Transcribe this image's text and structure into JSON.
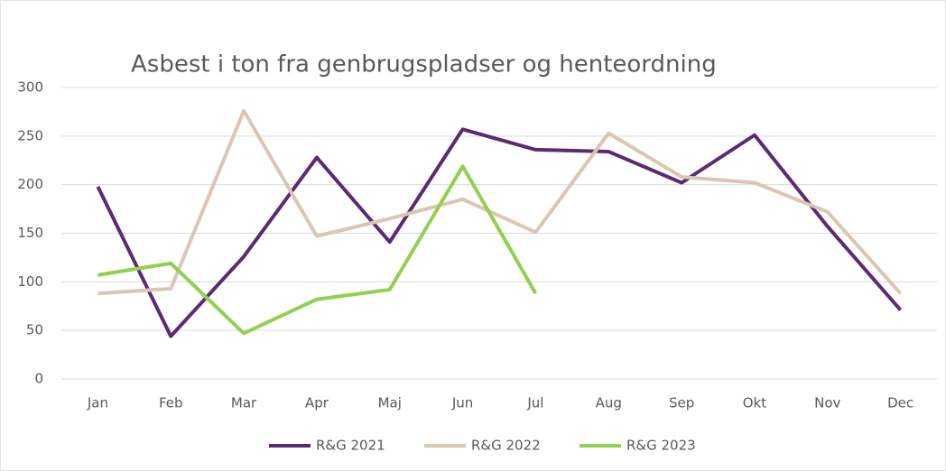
{
  "chart_data": {
    "type": "line",
    "title": "Asbest i ton fra genbrugspladser og henteordning",
    "categories": [
      "Jan",
      "Feb",
      "Mar",
      "Apr",
      "Maj",
      "Jun",
      "Jul",
      "Aug",
      "Sep",
      "Okt",
      "Nov",
      "Dec"
    ],
    "series": [
      {
        "name": "R&G 2021",
        "color": "#5c2a72",
        "values": [
          198,
          44,
          126,
          228,
          141,
          257,
          236,
          234,
          202,
          251,
          157,
          71
        ]
      },
      {
        "name": "R&G 2022",
        "color": "#d9c7b1",
        "values": [
          88,
          93,
          276,
          147,
          165,
          185,
          151,
          253,
          208,
          202,
          172,
          88
        ]
      },
      {
        "name": "R&G 2023",
        "color": "#92d050",
        "values": [
          107,
          119,
          47,
          82,
          92,
          219,
          88,
          null,
          null,
          null,
          null,
          null
        ]
      }
    ],
    "ylim": [
      0,
      300
    ],
    "yticks": [
      0,
      50,
      100,
      150,
      200,
      250,
      300
    ],
    "grid": true,
    "legend": "bottom"
  }
}
